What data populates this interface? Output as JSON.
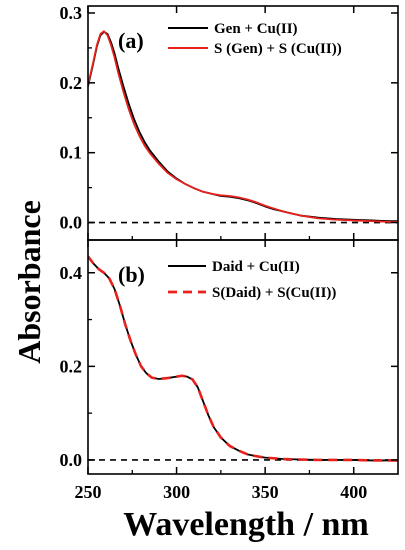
{
  "figure": {
    "y_axis_label": "Absorbance",
    "x_axis_label": "Wavelength / nm"
  },
  "chart_data": [
    {
      "type": "line",
      "panel_label": "(a)",
      "xlabel": "Wavelength / nm",
      "ylabel": "Absorbance",
      "xlim": [
        250,
        425
      ],
      "ylim": [
        -0.025,
        0.31
      ],
      "x_ticks": [
        250,
        300,
        350,
        400
      ],
      "y_ticks": [
        0.0,
        0.1,
        0.2,
        0.3
      ],
      "y_tick_labels": [
        "0.0",
        "0.1",
        "0.2",
        "0.3"
      ],
      "baseline": {
        "y": 0.0,
        "style": "dashed",
        "color": "#000000"
      },
      "legend_position": "top-right",
      "series": [
        {
          "name": "Gen + Cu(II)",
          "color": "#000000",
          "style": "solid",
          "x": [
            250,
            253,
            255,
            257,
            259,
            261,
            263,
            265,
            267,
            270,
            273,
            276,
            279,
            282,
            285,
            290,
            295,
            300,
            305,
            310,
            315,
            320,
            325,
            330,
            335,
            340,
            345,
            350,
            355,
            360,
            365,
            370,
            380,
            390,
            400,
            410,
            420,
            425
          ],
          "y": [
            0.195,
            0.228,
            0.252,
            0.268,
            0.273,
            0.27,
            0.258,
            0.242,
            0.222,
            0.195,
            0.17,
            0.148,
            0.13,
            0.115,
            0.103,
            0.087,
            0.073,
            0.063,
            0.055,
            0.049,
            0.044,
            0.041,
            0.038,
            0.037,
            0.035,
            0.032,
            0.028,
            0.023,
            0.019,
            0.016,
            0.013,
            0.01,
            0.007,
            0.005,
            0.004,
            0.003,
            0.002,
            0.002
          ]
        },
        {
          "name": "S (Gen) + S (Cu(II))",
          "color": "#e8211c",
          "style": "solid",
          "x": [
            250,
            253,
            255,
            257,
            259,
            261,
            263,
            265,
            267,
            270,
            273,
            276,
            279,
            282,
            285,
            290,
            295,
            300,
            305,
            310,
            315,
            320,
            325,
            330,
            335,
            340,
            345,
            350,
            355,
            360,
            365,
            370,
            380,
            390,
            400,
            410,
            420,
            425
          ],
          "y": [
            0.197,
            0.23,
            0.254,
            0.27,
            0.274,
            0.268,
            0.254,
            0.236,
            0.215,
            0.187,
            0.162,
            0.141,
            0.124,
            0.11,
            0.099,
            0.084,
            0.071,
            0.062,
            0.055,
            0.049,
            0.044,
            0.041,
            0.039,
            0.038,
            0.036,
            0.033,
            0.029,
            0.024,
            0.02,
            0.016,
            0.013,
            0.01,
            0.006,
            0.004,
            0.003,
            0.002,
            0.001,
            0.001
          ]
        }
      ]
    },
    {
      "type": "line",
      "panel_label": "(b)",
      "xlabel": "Wavelength / nm",
      "ylabel": "Absorbance",
      "xlim": [
        250,
        425
      ],
      "ylim": [
        -0.03,
        0.47
      ],
      "x_ticks": [
        250,
        300,
        350,
        400
      ],
      "x_tick_labels": [
        "250",
        "300",
        "350",
        "400"
      ],
      "y_ticks": [
        0.0,
        0.2,
        0.4
      ],
      "y_tick_labels": [
        "0.0",
        "0.2",
        "0.4"
      ],
      "baseline": {
        "y": 0.0,
        "style": "dashed",
        "color": "#000000"
      },
      "legend_position": "top-right",
      "series": [
        {
          "name": "Daid + Cu(II)",
          "color": "#000000",
          "style": "solid",
          "x": [
            250,
            253,
            256,
            259,
            262,
            265,
            268,
            271,
            274,
            277,
            280,
            283,
            286,
            290,
            295,
            300,
            303,
            306,
            309,
            312,
            315,
            318,
            321,
            325,
            330,
            335,
            340,
            345,
            350,
            360,
            370,
            380,
            390,
            400,
            410,
            420,
            425
          ],
          "y": [
            0.435,
            0.42,
            0.408,
            0.4,
            0.388,
            0.365,
            0.33,
            0.29,
            0.255,
            0.225,
            0.2,
            0.185,
            0.176,
            0.173,
            0.175,
            0.178,
            0.18,
            0.178,
            0.172,
            0.155,
            0.125,
            0.095,
            0.07,
            0.048,
            0.03,
            0.02,
            0.012,
            0.008,
            0.005,
            0.002,
            0.001,
            0.0,
            0.0,
            0.0,
            -0.001,
            -0.001,
            -0.001
          ]
        },
        {
          "name": "S(Daid) + S(Cu(II))",
          "color": "#e8211c",
          "style": "dashed",
          "x": [
            250,
            253,
            256,
            259,
            262,
            265,
            268,
            271,
            274,
            277,
            280,
            283,
            286,
            290,
            295,
            300,
            303,
            306,
            309,
            312,
            315,
            318,
            321,
            325,
            330,
            335,
            340,
            345,
            350,
            360,
            370,
            380,
            390,
            400,
            410,
            420,
            425
          ],
          "y": [
            0.435,
            0.42,
            0.408,
            0.4,
            0.388,
            0.365,
            0.33,
            0.29,
            0.255,
            0.225,
            0.2,
            0.185,
            0.176,
            0.173,
            0.175,
            0.178,
            0.18,
            0.178,
            0.172,
            0.155,
            0.125,
            0.095,
            0.07,
            0.048,
            0.03,
            0.02,
            0.012,
            0.008,
            0.005,
            0.002,
            0.001,
            0.0,
            0.0,
            0.0,
            -0.001,
            -0.001,
            -0.001
          ]
        }
      ]
    }
  ]
}
